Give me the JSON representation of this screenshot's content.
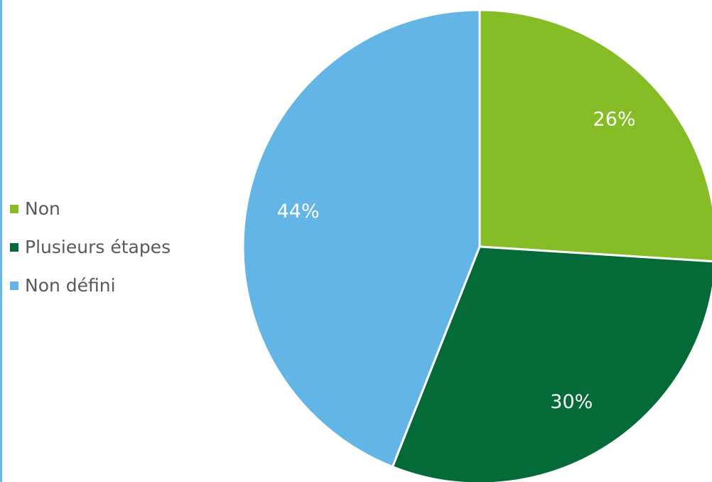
{
  "chart_data": {
    "type": "pie",
    "categories": [
      "Non",
      "Plusieurs étapes",
      "Non défini"
    ],
    "values": [
      26,
      30,
      44
    ],
    "value_labels": [
      "26%",
      "30%",
      "44%"
    ],
    "colors": [
      "#86bc25",
      "#046a38",
      "#62b5e5"
    ],
    "legend_position": "left",
    "start_angle_deg": 0,
    "direction": "clockwise"
  }
}
